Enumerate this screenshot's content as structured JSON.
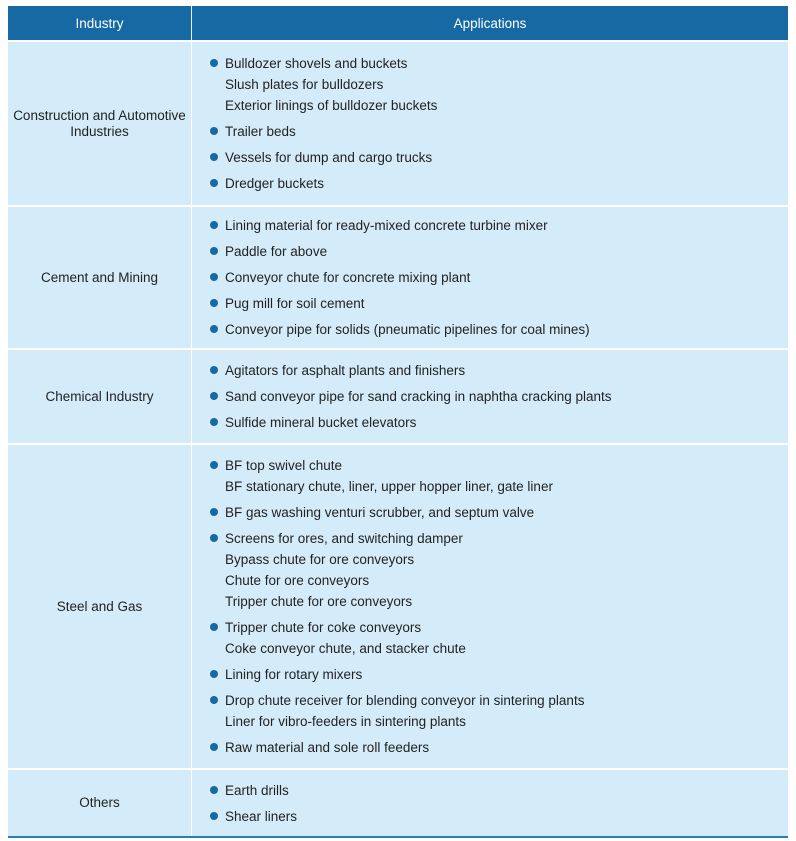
{
  "header": {
    "industry": "Industry",
    "applications": "Applications"
  },
  "bullet_color": "#1769a4",
  "rows": [
    {
      "industry": "Construction and Automotive Industries",
      "height": 165,
      "groups": [
        [
          "Bulldozer shovels and buckets",
          "Slush plates for bulldozers",
          "Exterior linings of bulldozer buckets"
        ],
        [
          "Trailer beds"
        ],
        [
          "Vessels for dump and cargo trucks"
        ],
        [
          "Dredger buckets"
        ]
      ]
    },
    {
      "industry": "Cement and Mining",
      "height": 143,
      "groups": [
        [
          "Lining material for ready-mixed concrete turbine mixer"
        ],
        [
          "Paddle for above"
        ],
        [
          "Conveyor chute for concrete mixing plant"
        ],
        [
          "Pug mill for soil cement"
        ],
        [
          "Conveyor pipe for solids (pneumatic pipelines for coal mines)"
        ]
      ]
    },
    {
      "industry": "Chemical Industry",
      "height": 95,
      "groups": [
        [
          "Agitators for asphalt plants and finishers"
        ],
        [
          "Sand conveyor pipe for sand cracking in naphtha cracking plants"
        ],
        [
          "Sulfide mineral bucket elevators"
        ]
      ]
    },
    {
      "industry": "Steel and Gas",
      "height": 325,
      "groups": [
        [
          "BF top swivel chute",
          "BF stationary chute, liner, upper hopper liner, gate liner"
        ],
        [
          "BF gas washing venturi scrubber, and septum valve"
        ],
        [
          "Screens for ores, and switching damper",
          "Bypass chute for ore conveyors",
          "Chute for ore conveyors",
          "Tripper chute for ore conveyors"
        ],
        [
          "Tripper chute for coke conveyors",
          "Coke conveyor chute, and stacker chute"
        ],
        [
          "Lining for rotary mixers"
        ],
        [
          "Drop chute receiver for blending conveyor in sintering plants",
          "Liner for vibro-feeders in sintering plants"
        ],
        [
          "Raw material and sole roll feeders"
        ]
      ]
    },
    {
      "industry": "Others",
      "height": 68,
      "groups": [
        [
          "Earth drills"
        ],
        [
          "Shear liners"
        ]
      ]
    }
  ]
}
